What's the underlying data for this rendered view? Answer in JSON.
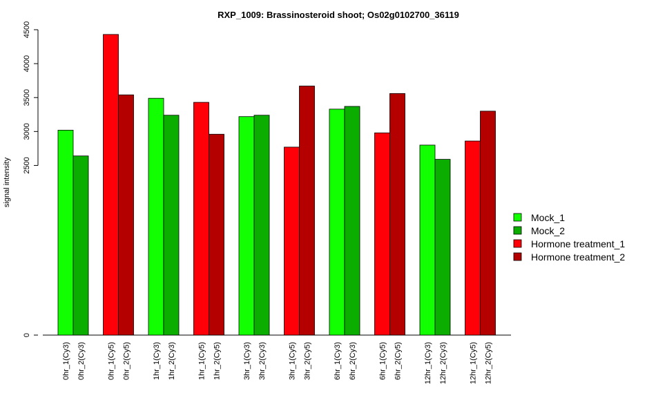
{
  "chart_data": {
    "type": "bar",
    "title": "RXP_1009: Brassinosteroid shoot; Os02g0102700_36119",
    "xlabel": "",
    "ylabel": "signal intensity",
    "ylim": [
      0,
      4500
    ],
    "yticks": [
      0,
      2500,
      3000,
      3500,
      4000,
      4500
    ],
    "grid": false,
    "legend_position": "right",
    "series": [
      {
        "name": "Mock_1",
        "color": "#11ff00"
      },
      {
        "name": "Mock_2",
        "color": "#0aad00"
      },
      {
        "name": "Hormone treatment_1",
        "color": "#ff0008"
      },
      {
        "name": "Hormone treatment_2",
        "color": "#b50000"
      }
    ],
    "bars": [
      {
        "label": "0hr_1(Cy3)",
        "value": 3020,
        "series": 0
      },
      {
        "label": "0hr_2(Cy3)",
        "value": 2640,
        "series": 1
      },
      {
        "label": "0hr_1(Cy5)",
        "value": 4430,
        "series": 2
      },
      {
        "label": "0hr_2(Cy5)",
        "value": 3540,
        "series": 3
      },
      {
        "label": "1hr_1(Cy3)",
        "value": 3490,
        "series": 0
      },
      {
        "label": "1hr_2(Cy3)",
        "value": 3240,
        "series": 1
      },
      {
        "label": "1hr_1(Cy5)",
        "value": 3430,
        "series": 2
      },
      {
        "label": "1hr_2(Cy5)",
        "value": 2960,
        "series": 3
      },
      {
        "label": "3hr_1(Cy3)",
        "value": 3220,
        "series": 0
      },
      {
        "label": "3hr_2(Cy3)",
        "value": 3240,
        "series": 1
      },
      {
        "label": "3hr_1(Cy5)",
        "value": 2770,
        "series": 2
      },
      {
        "label": "3hr_2(Cy5)",
        "value": 3670,
        "series": 3
      },
      {
        "label": "6hr_1(Cy3)",
        "value": 3330,
        "series": 0
      },
      {
        "label": "6hr_2(Cy3)",
        "value": 3370,
        "series": 1
      },
      {
        "label": "6hr_1(Cy5)",
        "value": 2980,
        "series": 2
      },
      {
        "label": "6hr_2(Cy5)",
        "value": 3560,
        "series": 3
      },
      {
        "label": "12hr_1(Cy3)",
        "value": 2800,
        "series": 0
      },
      {
        "label": "12hr_2(Cy3)",
        "value": 2590,
        "series": 1
      },
      {
        "label": "12hr_1(Cy5)",
        "value": 2860,
        "series": 2
      },
      {
        "label": "12hr_2(Cy5)",
        "value": 3300,
        "series": 3
      }
    ]
  }
}
